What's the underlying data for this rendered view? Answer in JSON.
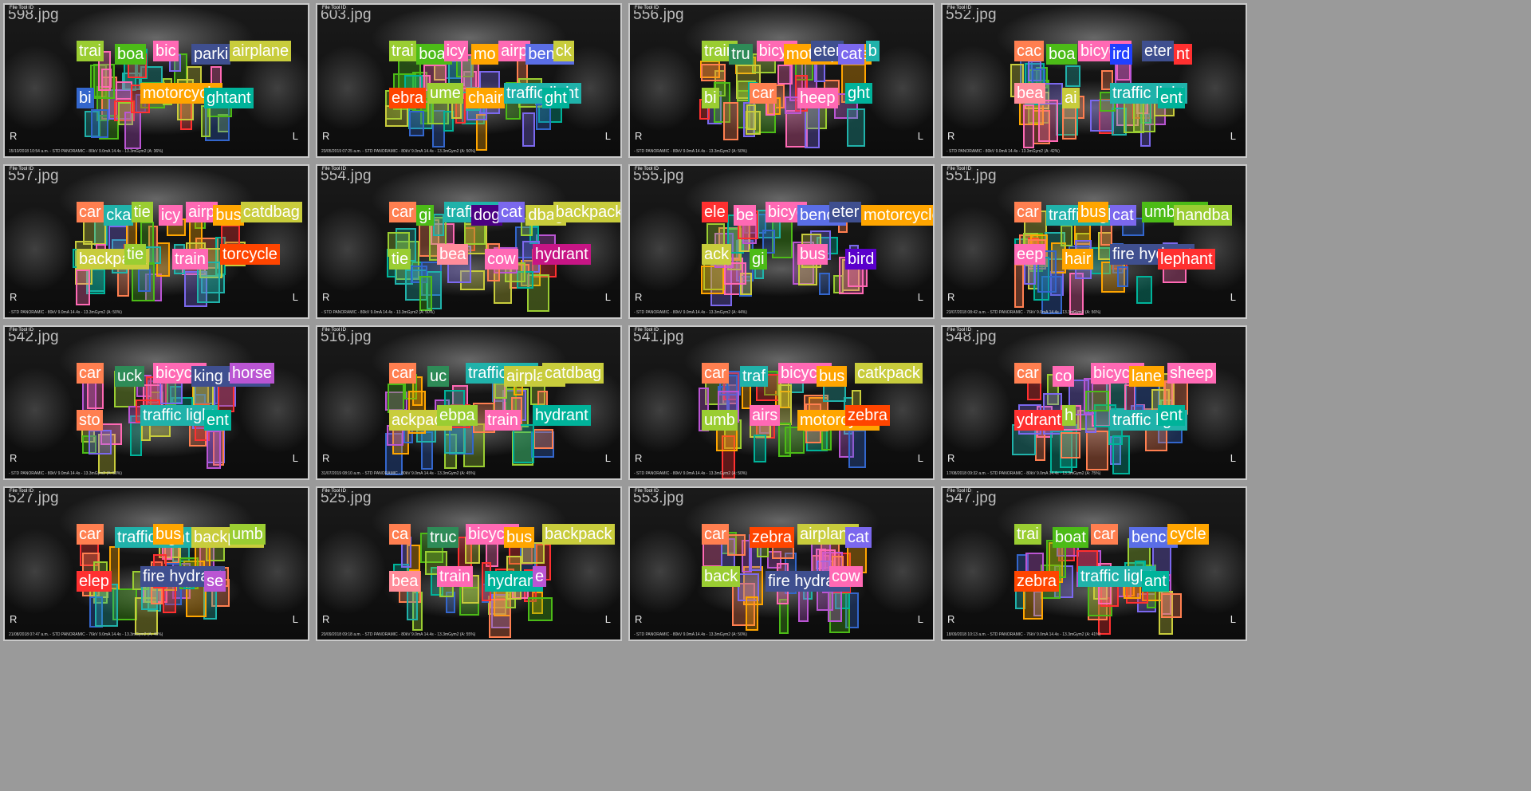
{
  "grid": {
    "tiles": [
      {
        "name": "598.jpg",
        "footer": "15/10/2018 10:54 a.m. - STD PANORAMIC - 80kV 9.0mA 14.4s - 13.3mGym2 (A: 36%)",
        "labels": [
          {
            "text": "trai",
            "color": "#9acd32"
          },
          {
            "text": "boa",
            "color": "#4cbb17"
          },
          {
            "text": "bic",
            "color": "#ff69b4"
          },
          {
            "text": "parki",
            "color": "#3f4f8f"
          },
          {
            "text": "airplane",
            "color": "#c8cc3c"
          },
          {
            "text": "bi",
            "color": "#3366cc"
          },
          {
            "text": "motorcycle",
            "color": "#ffa500"
          },
          {
            "text": "ghtant",
            "color": "#00b39a"
          }
        ]
      },
      {
        "name": "603.jpg",
        "footer": "23/05/2019 07:25 a.m. - STD PANORAMIC - 80kV 9.0mA 14.4s - 13.3mGym2 (A: 50%)",
        "labels": [
          {
            "text": "trai",
            "color": "#9acd32"
          },
          {
            "text": "boat",
            "color": "#4cbb17"
          },
          {
            "text": "icy",
            "color": "#ff69b4"
          },
          {
            "text": "mo",
            "color": "#ffa500"
          },
          {
            "text": "airp",
            "color": "#ff69b4"
          },
          {
            "text": "bench",
            "color": "#5a6ee6"
          },
          {
            "text": "ck",
            "color": "#c8cc3c"
          },
          {
            "text": "ebra",
            "color": "#ff4500"
          },
          {
            "text": "ume",
            "color": "#9acd32"
          },
          {
            "text": "chair",
            "color": "#ffa500"
          },
          {
            "text": "traffic light",
            "color": "#20b2aa"
          },
          {
            "text": "ght",
            "color": "#00b39a"
          }
        ]
      },
      {
        "name": "556.jpg",
        "footer": "- STD PANORAMIC - 80kV 9.0mA 14.4s - 13.3mGym2 (A: 50%)",
        "labels": [
          {
            "text": "train",
            "color": "#9acd32"
          },
          {
            "text": "tru",
            "color": "#2e8b57"
          },
          {
            "text": "bicyc",
            "color": "#ff69b4"
          },
          {
            "text": "motairplane",
            "color": "#ffa500"
          },
          {
            "text": "eter",
            "color": "#3f4f8f"
          },
          {
            "text": "cat",
            "color": "#7b68ee"
          },
          {
            "text": "b",
            "color": "#20b2aa"
          },
          {
            "text": "bi",
            "color": "#9acd32"
          },
          {
            "text": "car",
            "color": "#ff7f50"
          },
          {
            "text": "heep",
            "color": "#ff69b4"
          },
          {
            "text": "ght",
            "color": "#00b39a"
          }
        ]
      },
      {
        "name": "552.jpg",
        "footer": "- STD PANORAMIC - 80kV 9.0mA 14.4s - 13.3mGym2 (A: 42%)",
        "labels": [
          {
            "text": "cac",
            "color": "#ff7f50"
          },
          {
            "text": "boa",
            "color": "#4cbb17"
          },
          {
            "text": "bicycle",
            "color": "#ff69b4"
          },
          {
            "text": "ird",
            "color": "#2040ff"
          },
          {
            "text": "eter",
            "color": "#3f4f8f"
          },
          {
            "text": "nt",
            "color": "#ff3030"
          },
          {
            "text": "bea",
            "color": "#ff8c9a"
          },
          {
            "text": "ai",
            "color": "#c8cc3c"
          },
          {
            "text": "traffic light",
            "color": "#20b2aa"
          },
          {
            "text": "ent",
            "color": "#00b39a"
          }
        ]
      },
      {
        "name": "557.jpg",
        "footer": "- STD PANORAMIC - 80kV 9.0mA 14.4s - 13.3mGym2 (A: 50%)",
        "labels": [
          {
            "text": "car",
            "color": "#ff7f50"
          },
          {
            "text": "cka",
            "color": "#20b2aa"
          },
          {
            "text": "tie",
            "color": "#9acd32"
          },
          {
            "text": "icy",
            "color": "#ff69b4"
          },
          {
            "text": "airp",
            "color": "#ff69b4"
          },
          {
            "text": "bus",
            "color": "#ffa500"
          },
          {
            "text": "catdbag",
            "color": "#c8cc3c"
          },
          {
            "text": "backpack",
            "color": "#c8cc3c"
          },
          {
            "text": "tie",
            "color": "#9acd32"
          },
          {
            "text": "train",
            "color": "#ff69b4"
          },
          {
            "text": "torcycle",
            "color": "#ff4500"
          }
        ]
      },
      {
        "name": "554.jpg",
        "footer": "- STD PANORAMIC - 80kV 9.0mA 14.4s - 13.3mGym2 (A: 50%)",
        "labels": [
          {
            "text": "car",
            "color": "#ff7f50"
          },
          {
            "text": "gi",
            "color": "#4cbb17"
          },
          {
            "text": "traffic ligh",
            "color": "#20b2aa"
          },
          {
            "text": "dog",
            "color": "#4b0082"
          },
          {
            "text": "cat",
            "color": "#7b68ee"
          },
          {
            "text": "dbag",
            "color": "#c8cc3c"
          },
          {
            "text": "backpack",
            "color": "#c8cc3c"
          },
          {
            "text": "tie",
            "color": "#9acd32"
          },
          {
            "text": "bea",
            "color": "#ff8c9a"
          },
          {
            "text": "cow",
            "color": "#ff69b4"
          },
          {
            "text": "hydrant",
            "color": "#c71585"
          }
        ]
      },
      {
        "name": "555.jpg",
        "footer": "- STD PANORAMIC - 80kV 9.0mA 14.4s - 13.3mGym2 (A: 44%)",
        "labels": [
          {
            "text": "ele",
            "color": "#ff3030"
          },
          {
            "text": "be",
            "color": "#ff69b4"
          },
          {
            "text": "bicyc",
            "color": "#ff69b4"
          },
          {
            "text": "bench",
            "color": "#5a6ee6"
          },
          {
            "text": "eter",
            "color": "#3f4f8f"
          },
          {
            "text": "motorcycle",
            "color": "#ffa500"
          },
          {
            "text": "ack",
            "color": "#c8cc3c"
          },
          {
            "text": "gi",
            "color": "#4cbb17"
          },
          {
            "text": "bus",
            "color": "#ff69b4"
          },
          {
            "text": "bird",
            "color": "#5a00cc"
          }
        ]
      },
      {
        "name": "551.jpg",
        "footer": "23/07/2018 08:42 a.m. - STD PANORAMIC - 76kV 9.0mA 14.4s - 13.3mGym2 (A: 56%)",
        "labels": [
          {
            "text": "car",
            "color": "#ff7f50"
          },
          {
            "text": "traffic light",
            "color": "#20b2aa"
          },
          {
            "text": "bus",
            "color": "#ffa500"
          },
          {
            "text": "cat",
            "color": "#7b68ee"
          },
          {
            "text": "umbrella",
            "color": "#4cbb17"
          },
          {
            "text": "handba",
            "color": "#9acd32"
          },
          {
            "text": "eep",
            "color": "#ff69b4"
          },
          {
            "text": "hair",
            "color": "#ffa500"
          },
          {
            "text": "fire hydrant",
            "color": "#3f4f8f"
          },
          {
            "text": "lephant",
            "color": "#ff3030"
          }
        ]
      },
      {
        "name": "542.jpg",
        "footer": "- STD PANORAMIC - 80kV 9.0mA 14.4s - 13.3mGym2 (A: 50%)",
        "labels": [
          {
            "text": "car",
            "color": "#ff7f50"
          },
          {
            "text": "uck",
            "color": "#2e8b57"
          },
          {
            "text": "bicycle",
            "color": "#ff69b4"
          },
          {
            "text": "king meter",
            "color": "#3f4f8f"
          },
          {
            "text": "horse",
            "color": "#ba55d3"
          },
          {
            "text": "sto",
            "color": "#ff7f50"
          },
          {
            "text": "traffic light",
            "color": "#20b2aa"
          },
          {
            "text": "ent",
            "color": "#00b39a"
          }
        ]
      },
      {
        "name": "516.jpg",
        "footer": "31/07/2019 08:10 a.m. - STD PANORAMIC - 80kV 9.0mA 14.4s - 13.3mGym2 (A: 45%)",
        "labels": [
          {
            "text": "car",
            "color": "#ff7f50"
          },
          {
            "text": "uc",
            "color": "#2e8b57"
          },
          {
            "text": "traffic ligh",
            "color": "#20b2aa"
          },
          {
            "text": "airplane",
            "color": "#c8cc3c"
          },
          {
            "text": "catdbag",
            "color": "#c8cc3c"
          },
          {
            "text": "ackpack",
            "color": "#c8cc3c"
          },
          {
            "text": "ebpa",
            "color": "#9acd32"
          },
          {
            "text": "train",
            "color": "#ff69b4"
          },
          {
            "text": "hydrant",
            "color": "#00b39a"
          }
        ]
      },
      {
        "name": "541.jpg",
        "footer": "- STD PANORAMIC - 80kV 9.0mA 14.4s - 13.3mGym2 (A: 50%)",
        "labels": [
          {
            "text": "car",
            "color": "#ff7f50"
          },
          {
            "text": "traf",
            "color": "#20b2aa"
          },
          {
            "text": "bicycle",
            "color": "#ff69b4"
          },
          {
            "text": "bus",
            "color": "#ffa500"
          },
          {
            "text": "catkpack",
            "color": "#c8cc3c"
          },
          {
            "text": "umb",
            "color": "#9acd32"
          },
          {
            "text": "airs",
            "color": "#ff69b4"
          },
          {
            "text": "motorcycle",
            "color": "#ffa500"
          },
          {
            "text": "zebra",
            "color": "#ff4500"
          }
        ]
      },
      {
        "name": "548.jpg",
        "footer": "17/08/2018 09:32 a.m. - STD PANORAMIC - 80kV 9.0mA 14.4s - 13.3mGym2 (A: 75%)",
        "labels": [
          {
            "text": "car",
            "color": "#ff7f50"
          },
          {
            "text": "co",
            "color": "#ff69b4"
          },
          {
            "text": "bicycle",
            "color": "#ff69b4"
          },
          {
            "text": "lane",
            "color": "#ffa500"
          },
          {
            "text": "sheep",
            "color": "#ff69b4"
          },
          {
            "text": "ydrant",
            "color": "#ff3030"
          },
          {
            "text": "h",
            "color": "#9acd32"
          },
          {
            "text": "traffic light",
            "color": "#20b2aa"
          },
          {
            "text": "ent",
            "color": "#00b39a"
          }
        ]
      },
      {
        "name": "527.jpg",
        "footer": "21/08/2018 07:47 a.m. - STD PANORAMIC - 76kV 9.0mA 14.4s - 13.3mGym2 (A: 46%)",
        "labels": [
          {
            "text": "car",
            "color": "#ff7f50"
          },
          {
            "text": "traffic light",
            "color": "#20b2aa"
          },
          {
            "text": "bus",
            "color": "#ffa500"
          },
          {
            "text": "backpack",
            "color": "#c8cc3c"
          },
          {
            "text": "umb",
            "color": "#9acd32"
          },
          {
            "text": "elep",
            "color": "#ff3030"
          },
          {
            "text": "fire hydrant",
            "color": "#3f4f8f"
          },
          {
            "text": "se",
            "color": "#ba55d3"
          }
        ]
      },
      {
        "name": "525.jpg",
        "footer": "20/09/2018 09:18 a.m. - STD PANORAMIC - 80kV 9.0mA 14.4s - 13.3mGym2 (A: 55%)",
        "labels": [
          {
            "text": "ca",
            "color": "#ff7f50"
          },
          {
            "text": "truc",
            "color": "#2e8b57"
          },
          {
            "text": "bicycle",
            "color": "#ff69b4"
          },
          {
            "text": "bus",
            "color": "#ffa500"
          },
          {
            "text": "backpack",
            "color": "#c8cc3c"
          },
          {
            "text": "bea",
            "color": "#ff8c9a"
          },
          {
            "text": "train",
            "color": "#ff69b4"
          },
          {
            "text": "hydrant",
            "color": "#00b39a"
          },
          {
            "text": "e",
            "color": "#ba55d3"
          }
        ]
      },
      {
        "name": "553.jpg",
        "footer": "- STD PANORAMIC - 80kV 9.0mA 14.4s - 13.3mGym2 (A: 50%)",
        "labels": [
          {
            "text": "car",
            "color": "#ff7f50"
          },
          {
            "text": "zebra",
            "color": "#ff4500"
          },
          {
            "text": "airplane",
            "color": "#c8cc3c"
          },
          {
            "text": "cat",
            "color": "#7b68ee"
          },
          {
            "text": "back",
            "color": "#9acd32"
          },
          {
            "text": "fire hydrant",
            "color": "#3f4f8f"
          },
          {
            "text": "cow",
            "color": "#ff69b4"
          }
        ]
      },
      {
        "name": "547.jpg",
        "footer": "18/09/2018 10:13 a.m. - STD PANORAMIC - 76kV 9.0mA 14.4s - 13.3mGym2 (A: 41%)",
        "labels": [
          {
            "text": "trai",
            "color": "#9acd32"
          },
          {
            "text": "boat",
            "color": "#4cbb17"
          },
          {
            "text": "car",
            "color": "#ff7f50"
          },
          {
            "text": "bench",
            "color": "#5a6ee6"
          },
          {
            "text": "cycle",
            "color": "#ffa500"
          },
          {
            "text": "zebra",
            "color": "#ff4500"
          },
          {
            "text": "traffic light",
            "color": "#20b2aa"
          },
          {
            "text": "ant",
            "color": "#00b39a"
          }
        ]
      }
    ],
    "side_labels": {
      "right": "R",
      "left": "L"
    },
    "corner_tag": "File Tool ID"
  }
}
